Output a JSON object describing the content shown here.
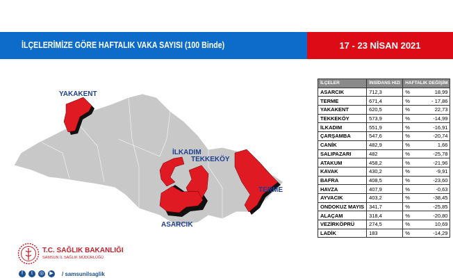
{
  "header": {
    "title": "İLÇELERİMİZE GÖRE HAFTALIK VAKA SAYISI (100 Binde)",
    "date": "17 - 23 NİSAN 2021",
    "colors": {
      "blue": "#0d6bc9",
      "red": "#dd0b16"
    }
  },
  "map": {
    "labels": {
      "yakakent": "YAKAKENT",
      "ilkadim": "İLKADIM",
      "tekkekoy": "TEKKEKÖY",
      "terme": "TERME",
      "asarcik": "ASARCIK"
    },
    "colors": {
      "base": "#c8c8c8",
      "highlight": "#e01a22"
    }
  },
  "table": {
    "headers": [
      "İLÇELER",
      "İNSİDANS HIZI",
      "HAFTALIK DEĞİŞİM"
    ],
    "rows": [
      {
        "name": "ASARCIK",
        "rate": "712,3",
        "pct": "%",
        "change": "18,99"
      },
      {
        "name": "TERME",
        "rate": "671,4",
        "pct": "%",
        "change": "- 17,86"
      },
      {
        "name": "YAKAKENT",
        "rate": "620,5",
        "pct": "%",
        "change": "22,73"
      },
      {
        "name": "TEKKEKÖY",
        "rate": "573,9",
        "pct": "%",
        "change": "-14,99"
      },
      {
        "name": "İLKADIM",
        "rate": "551,9",
        "pct": "%",
        "change": "-16,91"
      },
      {
        "name": "ÇARŞAMBA",
        "rate": "547,6",
        "pct": "%",
        "change": "-20,74"
      },
      {
        "name": "CANİK",
        "rate": "482,9",
        "pct": "%",
        "change": "1,66"
      },
      {
        "name": "SALIPAZARI",
        "rate": "482",
        "pct": "%",
        "change": "-25,78"
      },
      {
        "name": "ATAKUM",
        "rate": "458,2",
        "pct": "%",
        "change": "-21,96"
      },
      {
        "name": "KAVAK",
        "rate": "430,2",
        "pct": "%",
        "change": "-9,91"
      },
      {
        "name": "BAFRA",
        "rate": "408,5",
        "pct": "%",
        "change": "-23,60"
      },
      {
        "name": "HAVZA",
        "rate": "407,9",
        "pct": "%",
        "change": "-0,63"
      },
      {
        "name": "AYVACIK",
        "rate": "403,2",
        "pct": "%",
        "change": "-38,45"
      },
      {
        "name": "ONDOKUZ MAYIS",
        "rate": "341,7",
        "pct": "%",
        "change": "-25,85"
      },
      {
        "name": "ALAÇAM",
        "rate": "318,4",
        "pct": "%",
        "change": "-20,80"
      },
      {
        "name": "VEZİRKÖPRÜ",
        "rate": "274,5",
        "pct": "%",
        "change": "10,69"
      },
      {
        "name": "LADİK",
        "rate": "183",
        "pct": "%",
        "change": "-14,29"
      }
    ]
  },
  "footer": {
    "org": "T.C. SAĞLIK BAKANLIĞI",
    "sub": "SAMSUN İL SAĞLIK MÜDÜRLÜĞÜ",
    "handle": "samsunilsaglik",
    "social_icons": [
      "facebook-icon",
      "twitter-icon",
      "instagram-icon",
      "youtube-icon"
    ]
  }
}
